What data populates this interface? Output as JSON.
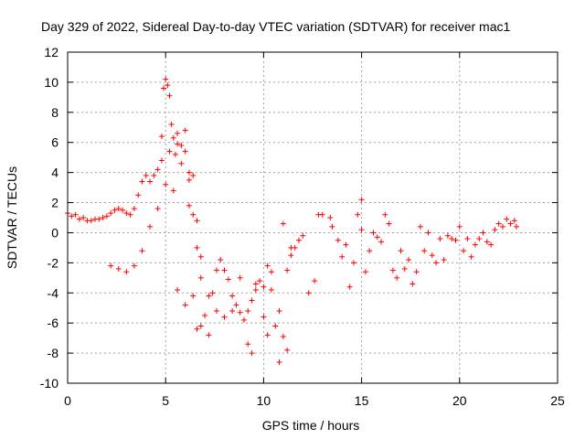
{
  "chart_data": {
    "type": "scatter",
    "title": "Day 329 of 2022, Sidereal Day-to-day VTEC variation (SDTVAR) for receiver mac1",
    "xlabel": "GPS time / hours",
    "ylabel": "SDTVAR / TECUs",
    "xlim": [
      0,
      25
    ],
    "ylim": [
      -10,
      12
    ],
    "xticks": [
      0,
      5,
      10,
      15,
      20,
      25
    ],
    "yticks": [
      -10,
      -8,
      -6,
      -4,
      -2,
      0,
      2,
      4,
      6,
      8,
      10,
      12
    ],
    "grid": true,
    "marker": "+",
    "color": "#ff0000",
    "series": [
      {
        "name": "SDTVAR",
        "points": [
          [
            0.0,
            1.3
          ],
          [
            0.2,
            1.1
          ],
          [
            0.4,
            1.2
          ],
          [
            0.6,
            0.9
          ],
          [
            0.8,
            1.0
          ],
          [
            1.0,
            0.8
          ],
          [
            1.2,
            0.8
          ],
          [
            1.4,
            0.9
          ],
          [
            1.6,
            0.9
          ],
          [
            1.8,
            1.0
          ],
          [
            2.0,
            1.1
          ],
          [
            2.2,
            1.3
          ],
          [
            2.4,
            1.5
          ],
          [
            2.6,
            1.6
          ],
          [
            2.8,
            1.5
          ],
          [
            3.0,
            1.3
          ],
          [
            3.2,
            1.2
          ],
          [
            3.4,
            1.6
          ],
          [
            3.6,
            2.5
          ],
          [
            3.8,
            3.4
          ],
          [
            4.0,
            3.8
          ],
          [
            4.2,
            3.4
          ],
          [
            4.4,
            3.8
          ],
          [
            4.6,
            4.2
          ],
          [
            4.8,
            4.8
          ],
          [
            4.9,
            9.6
          ],
          [
            5.0,
            10.2
          ],
          [
            5.1,
            9.8
          ],
          [
            5.2,
            9.1
          ],
          [
            5.3,
            7.2
          ],
          [
            5.4,
            6.3
          ],
          [
            5.5,
            5.2
          ],
          [
            5.6,
            5.9
          ],
          [
            5.8,
            5.8
          ],
          [
            6.0,
            5.4
          ],
          [
            6.2,
            3.5
          ],
          [
            6.4,
            1.2
          ],
          [
            6.6,
            -1.0
          ],
          [
            6.8,
            -3.0
          ],
          [
            7.0,
            -5.5
          ],
          [
            7.2,
            -4.2
          ],
          [
            7.4,
            -4.0
          ],
          [
            7.6,
            -2.5
          ],
          [
            7.8,
            -1.8
          ],
          [
            8.0,
            -2.5
          ],
          [
            8.2,
            -3.1
          ],
          [
            8.4,
            -4.2
          ],
          [
            8.6,
            -4.8
          ],
          [
            8.8,
            -5.3
          ],
          [
            9.0,
            -5.8
          ],
          [
            9.2,
            -5.2
          ],
          [
            9.4,
            -4.5
          ],
          [
            9.6,
            -3.8
          ],
          [
            9.8,
            -3.2
          ],
          [
            10.0,
            -3.6
          ],
          [
            10.2,
            -2.2
          ],
          [
            10.4,
            -3.8
          ],
          [
            10.6,
            -6.2
          ],
          [
            10.8,
            -8.6
          ],
          [
            11.0,
            -6.9
          ],
          [
            11.2,
            -2.5
          ],
          [
            11.4,
            -1.5
          ],
          [
            11.6,
            -1.0
          ],
          [
            11.8,
            -0.5
          ],
          [
            12.0,
            -0.2
          ],
          [
            12.3,
            -4.0
          ],
          [
            12.6,
            -3.2
          ],
          [
            13.0,
            1.2
          ],
          [
            13.4,
            1.0
          ],
          [
            13.8,
            -0.5
          ],
          [
            14.2,
            -0.8
          ],
          [
            14.6,
            -2.0
          ],
          [
            15.0,
            0.2
          ],
          [
            15.4,
            -1.2
          ],
          [
            15.8,
            -0.3
          ],
          [
            16.2,
            1.2
          ],
          [
            16.6,
            -2.5
          ],
          [
            17.0,
            -1.2
          ],
          [
            17.4,
            -1.8
          ],
          [
            17.8,
            -2.6
          ],
          [
            18.2,
            -1.2
          ],
          [
            18.6,
            -1.5
          ],
          [
            19.0,
            -0.4
          ],
          [
            19.4,
            -0.2
          ],
          [
            19.8,
            -0.5
          ],
          [
            20.2,
            -1.2
          ],
          [
            20.6,
            -1.6
          ],
          [
            21.0,
            -0.4
          ],
          [
            21.4,
            -0.6
          ],
          [
            21.8,
            0.2
          ],
          [
            22.2,
            0.4
          ],
          [
            22.6,
            0.6
          ],
          [
            22.9,
            0.4
          ],
          [
            2.2,
            -2.2
          ],
          [
            2.6,
            -2.4
          ],
          [
            3.0,
            -2.6
          ],
          [
            3.4,
            -2.2
          ],
          [
            3.8,
            -1.2
          ],
          [
            4.2,
            0.4
          ],
          [
            4.6,
            1.6
          ],
          [
            5.0,
            3.2
          ],
          [
            5.4,
            2.8
          ],
          [
            5.8,
            4.6
          ],
          [
            6.2,
            4.0
          ],
          [
            5.6,
            -3.8
          ],
          [
            6.0,
            -4.8
          ],
          [
            6.4,
            -4.2
          ],
          [
            6.6,
            -6.4
          ],
          [
            6.8,
            -6.2
          ],
          [
            7.2,
            -6.8
          ],
          [
            7.6,
            -5.2
          ],
          [
            8.0,
            -5.6
          ],
          [
            8.4,
            -5.2
          ],
          [
            8.8,
            -3.0
          ],
          [
            9.2,
            -7.4
          ],
          [
            9.6,
            -3.4
          ],
          [
            10.0,
            -5.6
          ],
          [
            10.4,
            -2.6
          ],
          [
            10.8,
            -5.2
          ],
          [
            11.2,
            -7.8
          ],
          [
            11.4,
            -1.0
          ],
          [
            11.0,
            0.6
          ],
          [
            10.2,
            -6.8
          ],
          [
            9.4,
            -8.0
          ],
          [
            13.5,
            0.4
          ],
          [
            14.0,
            -1.6
          ],
          [
            14.4,
            -3.6
          ],
          [
            14.8,
            1.2
          ],
          [
            15.2,
            -2.6
          ],
          [
            15.6,
            0.0
          ],
          [
            16.0,
            -0.6
          ],
          [
            16.4,
            0.6
          ],
          [
            16.8,
            -3.0
          ],
          [
            17.2,
            -2.4
          ],
          [
            17.6,
            -3.4
          ],
          [
            18.0,
            0.4
          ],
          [
            18.4,
            0.0
          ],
          [
            18.8,
            -2.0
          ],
          [
            19.2,
            -1.8
          ],
          [
            19.6,
            -0.4
          ],
          [
            20.0,
            0.4
          ],
          [
            20.4,
            -0.4
          ],
          [
            20.8,
            -0.8
          ],
          [
            21.2,
            0.0
          ],
          [
            21.6,
            -0.8
          ],
          [
            22.0,
            0.6
          ],
          [
            22.4,
            0.9
          ],
          [
            22.8,
            0.8
          ],
          [
            4.8,
            6.4
          ],
          [
            5.2,
            5.4
          ],
          [
            5.6,
            6.6
          ],
          [
            6.0,
            6.8
          ],
          [
            6.4,
            3.8
          ],
          [
            6.2,
            1.8
          ],
          [
            6.6,
            0.8
          ],
          [
            6.8,
            -1.6
          ],
          [
            12.8,
            1.2
          ],
          [
            15.0,
            2.2
          ]
        ]
      }
    ]
  }
}
